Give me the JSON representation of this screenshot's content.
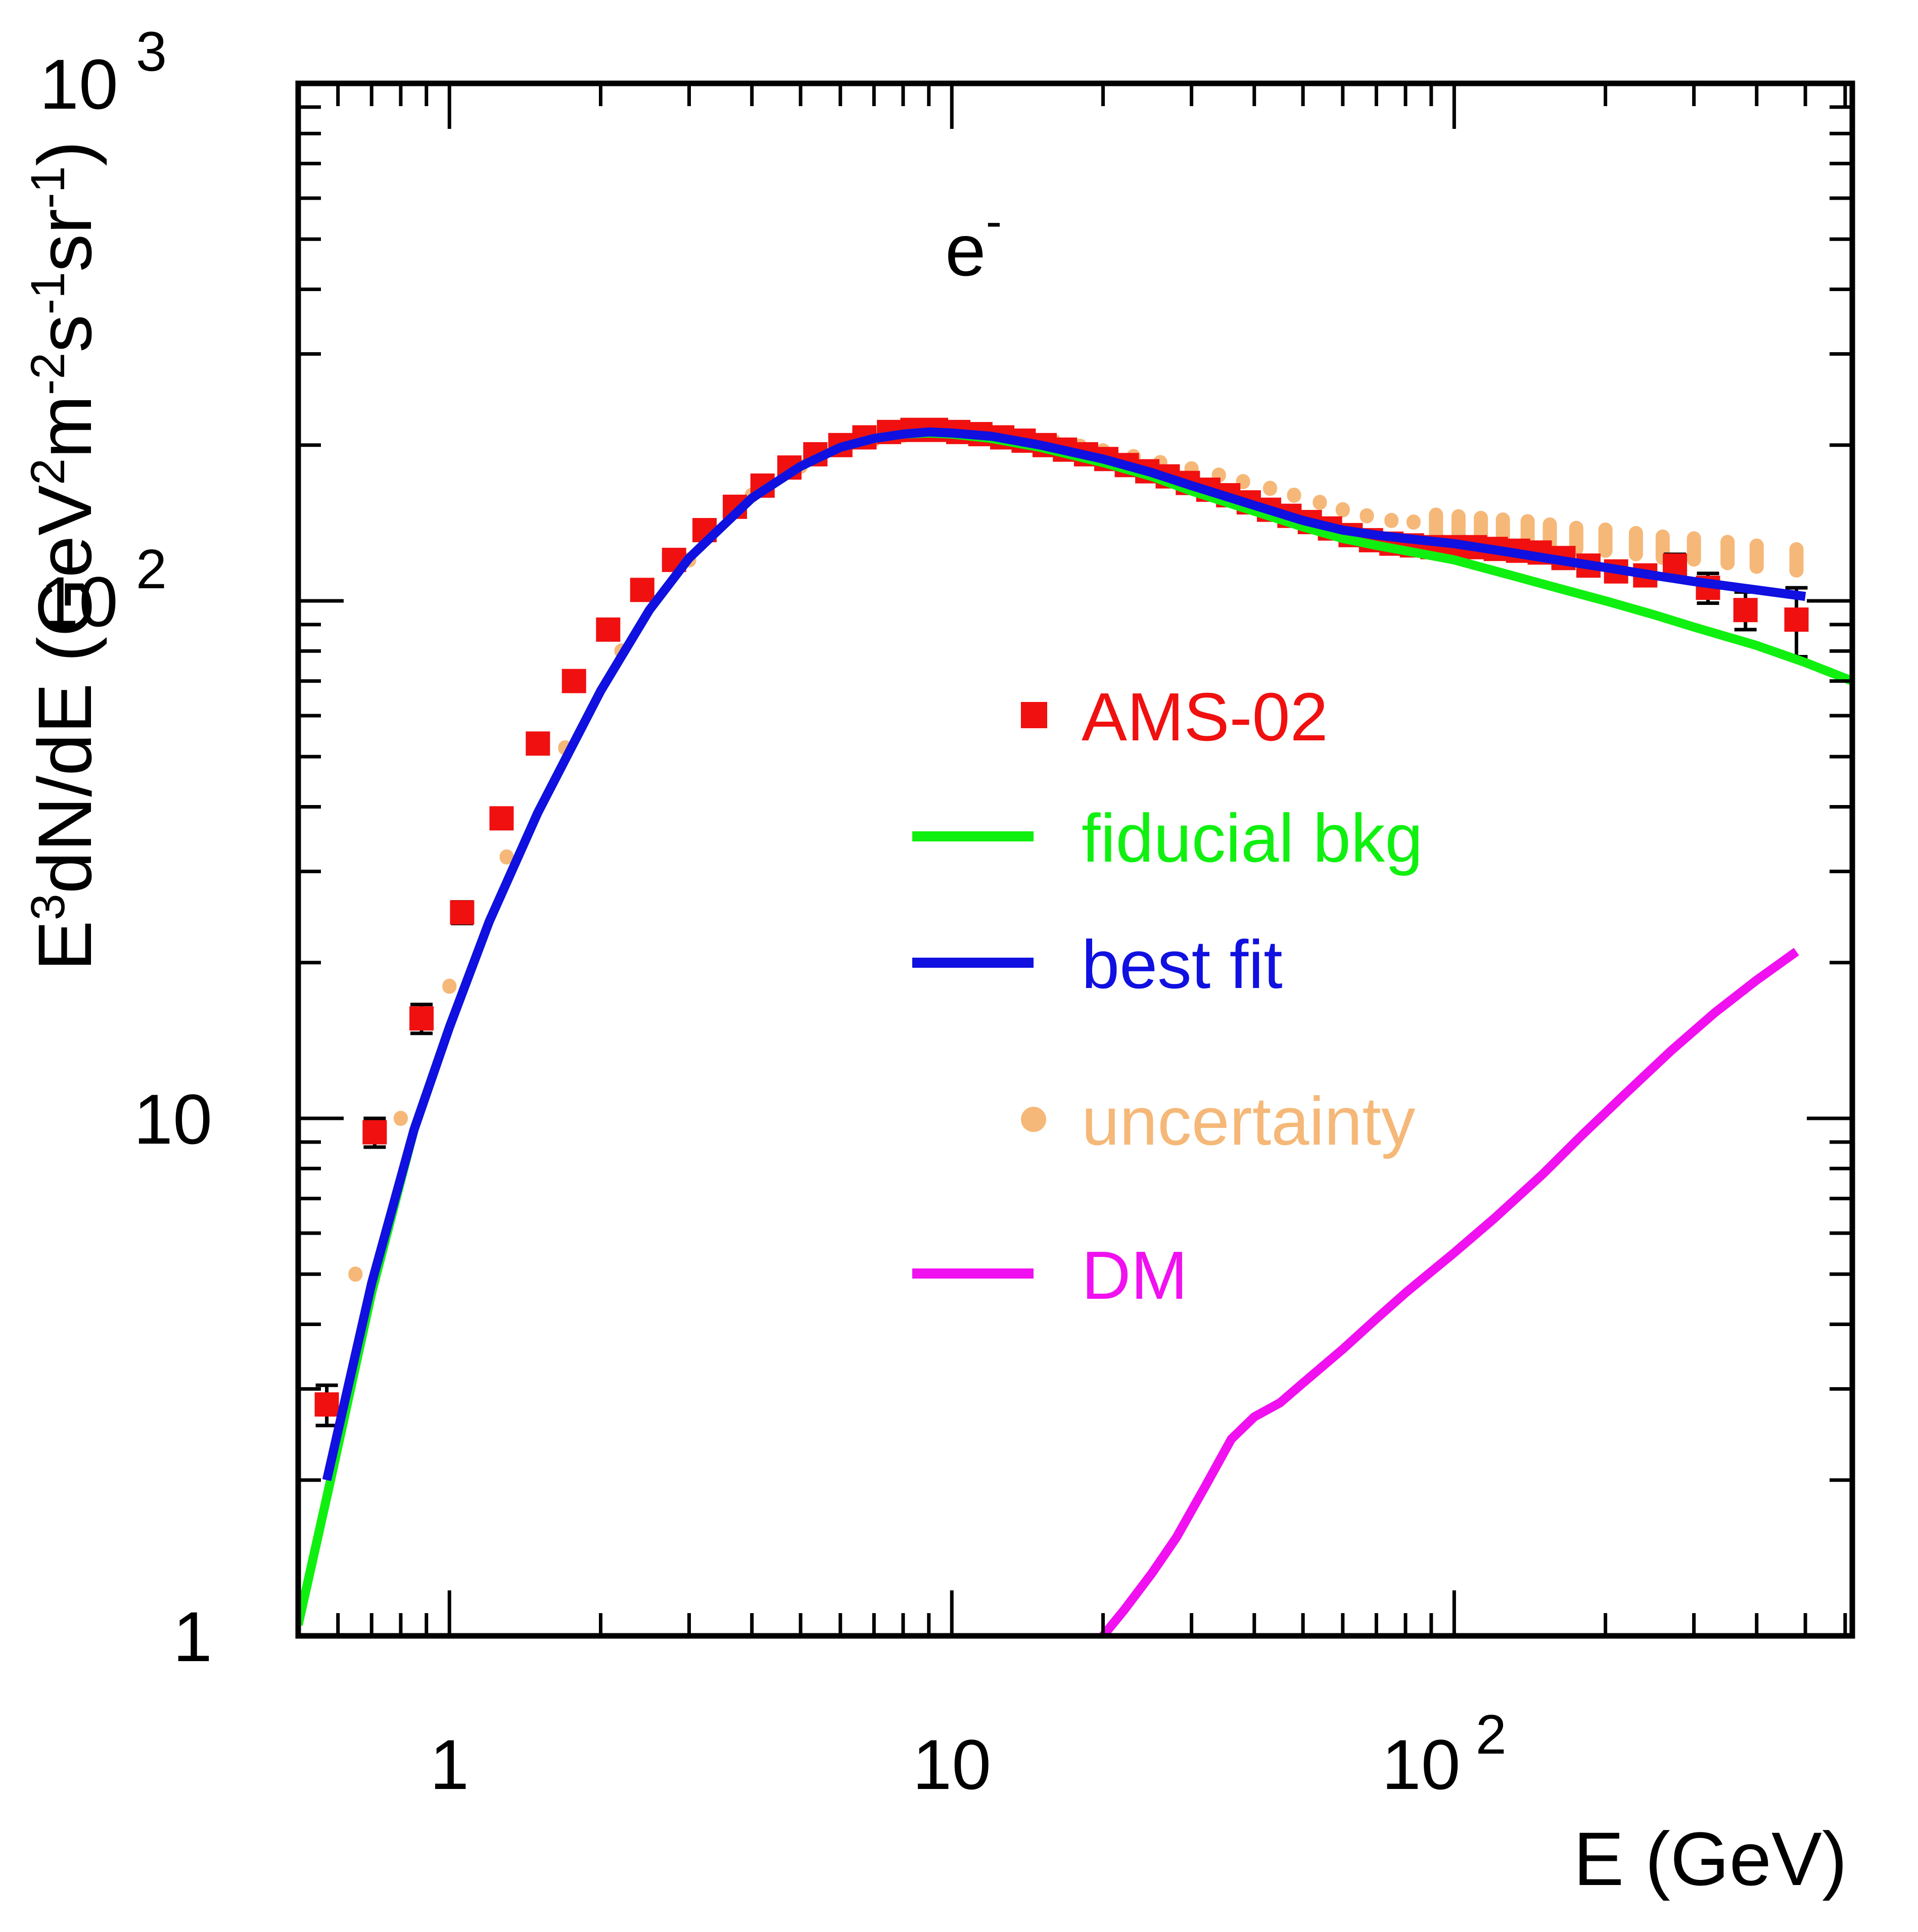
{
  "chart_data": {
    "type": "scatter",
    "title": "",
    "annotation": {
      "base": "e",
      "sup": "-"
    },
    "xlabel": "E (GeV)",
    "ylabel": {
      "parts": [
        {
          "t": "E",
          "s": ""
        },
        {
          "t": "3",
          "s": "sup"
        },
        {
          "t": "dN/dE (GeV",
          "s": ""
        },
        {
          "t": "2",
          "s": "sup"
        },
        {
          "t": "m",
          "s": ""
        },
        {
          "t": "-2",
          "s": "sup"
        },
        {
          "t": "s",
          "s": ""
        },
        {
          "t": "-1",
          "s": "sup"
        },
        {
          "t": "sr",
          "s": ""
        },
        {
          "t": "-1",
          "s": "sup"
        },
        {
          "t": ")",
          "s": ""
        }
      ]
    },
    "xscale": "log",
    "yscale": "log",
    "xlim": [
      0.5,
      620
    ],
    "ylim": [
      1,
      1000
    ],
    "grid": false,
    "xticks": [
      {
        "v": 1,
        "base": "1",
        "exp": ""
      },
      {
        "v": 10,
        "base": "10",
        "exp": ""
      },
      {
        "v": 100,
        "base": "10",
        "exp": "2"
      }
    ],
    "yticks": [
      {
        "v": 1,
        "base": "1",
        "exp": ""
      },
      {
        "v": 10,
        "base": "10",
        "exp": ""
      },
      {
        "v": 100,
        "base": "10",
        "exp": "2"
      },
      {
        "v": 1000,
        "base": "10",
        "exp": "3"
      }
    ],
    "legend_position": "center-right",
    "colors": {
      "ams": "#f01010",
      "bkg": "#10f010",
      "fit": "#1010e0",
      "unc": "#f5b878",
      "dm": "#f010f0",
      "axis": "#000000"
    },
    "series": [
      {
        "name": "AMS-02",
        "kind": "points",
        "color_key": "ams",
        "x": [
          0.57,
          0.71,
          0.88,
          1.06,
          1.27,
          1.5,
          1.77,
          2.07,
          2.42,
          2.8,
          3.22,
          3.7,
          4.2,
          4.75,
          5.35,
          6.0,
          6.7,
          7.5,
          8.35,
          9.3,
          10.3,
          11.4,
          12.6,
          13.9,
          15.3,
          16.8,
          18.5,
          20.3,
          22.3,
          24.5,
          26.9,
          29.5,
          32.4,
          35.5,
          39.0,
          42.8,
          47.0,
          51.6,
          56.6,
          62.2,
          68.3,
          75.0,
          82.4,
          90.5,
          100,
          110,
          121,
          134,
          148,
          165,
          185,
          210,
          240,
          275,
          320,
          380,
          480
        ],
        "y": [
          2.8,
          9.4,
          15.6,
          25,
          38,
          53,
          70,
          88,
          105,
          120,
          137,
          152,
          167,
          181,
          192,
          200,
          207,
          212,
          214,
          214,
          212,
          210,
          207,
          204,
          200,
          196,
          192,
          188,
          183,
          178,
          174,
          169,
          164,
          160,
          155,
          150,
          146,
          142,
          138,
          134,
          131,
          129,
          128,
          127,
          127,
          127,
          126,
          125,
          124,
          121,
          117,
          114,
          112,
          117,
          106,
          96,
          92
        ],
        "err": [
          0.25,
          0.6,
          1.0,
          1.2,
          1.5,
          2,
          2,
          2,
          2,
          2,
          2,
          2,
          2,
          2,
          2,
          2,
          2,
          2,
          2,
          2,
          2,
          2,
          2,
          2,
          2,
          2,
          2,
          2,
          2,
          2,
          2,
          2,
          2,
          2,
          2,
          2,
          2,
          2,
          2,
          2,
          2,
          2,
          2,
          2,
          2,
          2,
          2,
          2,
          2,
          2,
          3,
          4,
          4,
          6,
          7,
          8,
          14
        ]
      },
      {
        "name": "fiducial bkg",
        "kind": "line",
        "color_key": "bkg",
        "x": [
          0.5,
          0.58,
          0.7,
          0.85,
          1.0,
          1.2,
          1.5,
          2.0,
          2.5,
          3.0,
          4.0,
          5.0,
          6.0,
          7.0,
          8.0,
          9.0,
          10,
          12,
          15,
          20,
          25,
          30,
          40,
          50,
          60,
          70,
          80,
          100,
          130,
          160,
          200,
          250,
          300,
          400,
          500,
          620
        ],
        "y": [
          1.05,
          2.0,
          4.6,
          9.5,
          15,
          24,
          39,
          67,
          96,
          121,
          158,
          182,
          198,
          206,
          210,
          211,
          210,
          206,
          198,
          185,
          174,
          163,
          149,
          139,
          132,
          128,
          125,
          120,
          112,
          106,
          100,
          94,
          89,
          82,
          76,
          70
        ]
      },
      {
        "name": "best fit",
        "kind": "line",
        "color_key": "fit",
        "x": [
          0.57,
          0.7,
          0.85,
          1.0,
          1.2,
          1.5,
          2.0,
          2.5,
          3.0,
          4.0,
          5.0,
          6.0,
          7.0,
          8.0,
          9.0,
          10,
          12,
          15,
          20,
          25,
          30,
          40,
          50,
          60,
          70,
          80,
          100,
          130,
          160,
          200,
          250,
          300,
          400,
          500
        ],
        "y": [
          2.0,
          4.8,
          9.5,
          15,
          24,
          39,
          67,
          96,
          121,
          158,
          182,
          198,
          206,
          210,
          212,
          211,
          208,
          200,
          188,
          177,
          167,
          153,
          143,
          137,
          134,
          132,
          129,
          124,
          120,
          116,
          112,
          109,
          105,
          102
        ]
      },
      {
        "name": "uncertainty",
        "kind": "band",
        "color_key": "unc",
        "x": [
          0.65,
          0.8,
          1.0,
          1.3,
          1.7,
          2.2,
          3,
          4,
          5,
          6,
          7,
          8,
          9,
          10,
          12,
          14,
          16,
          18,
          20,
          23,
          26,
          30,
          34,
          38,
          43,
          48,
          54,
          60,
          67,
          75,
          83,
          92,
          102,
          113,
          125,
          140,
          155,
          175,
          200,
          230,
          260,
          300,
          350,
          400,
          480
        ],
        "y": [
          5,
          10,
          18,
          32,
          52,
          80,
          120,
          160,
          182,
          198,
          205,
          209,
          211,
          211,
          209,
          206,
          203,
          199,
          195,
          190,
          185,
          180,
          175,
          170,
          165,
          160,
          155,
          150,
          146,
          143,
          142,
          140,
          139,
          138,
          137,
          136,
          134,
          132,
          131,
          129,
          127,
          126,
          124,
          122,
          120
        ]
      },
      {
        "name": "DM",
        "kind": "line",
        "color_key": "dm",
        "x": [
          20,
          22,
          25,
          28,
          32,
          36,
          40,
          45,
          50,
          60,
          70,
          80,
          100,
          120,
          150,
          180,
          220,
          270,
          330,
          400,
          480
        ],
        "y": [
          1.0,
          1.12,
          1.32,
          1.55,
          1.95,
          2.4,
          2.65,
          2.82,
          3.08,
          3.58,
          4.1,
          4.6,
          5.5,
          6.4,
          7.8,
          9.3,
          11.2,
          13.5,
          16.0,
          18.5,
          21.0
        ]
      }
    ]
  }
}
